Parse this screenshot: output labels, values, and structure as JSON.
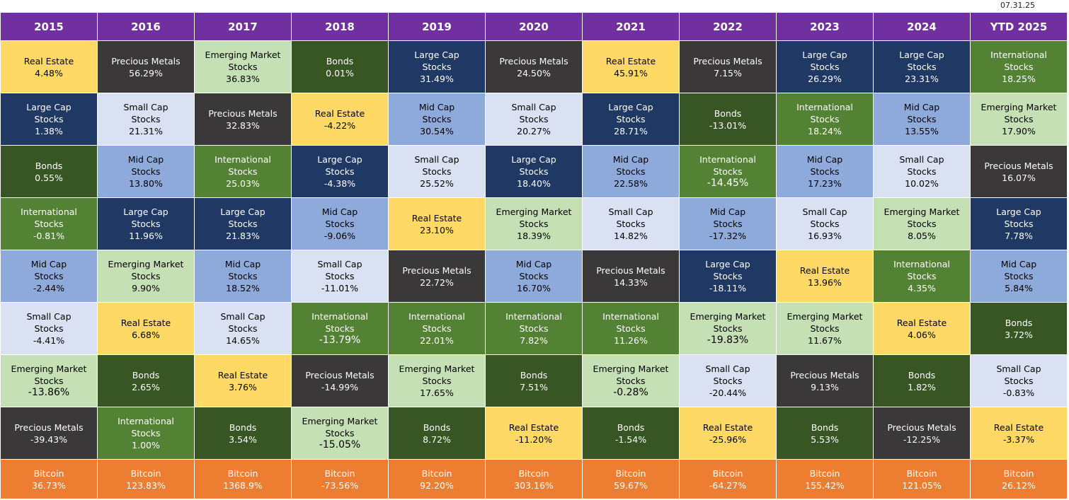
{
  "as_of": "07.31.25",
  "colors": {
    "header": "#7030a0",
    "Real Estate": "#ffd966",
    "Precious Metals": "#3a3838",
    "Emerging Market Stocks": "#c5e0b4",
    "Bonds": "#375623",
    "Large Cap Stocks": "#1f3864",
    "International Stocks": "#548235",
    "Small Cap Stocks": "#d9e1f2",
    "Mid Cap Stocks": "#8eaadb",
    "Bitcoin": "#ed7d31"
  },
  "text_colors": {
    "Real Estate": "#000000",
    "Precious Metals": "#ffffff",
    "Emerging Market Stocks": "#000000",
    "Bonds": "#ffffff",
    "Large Cap Stocks": "#ffffff",
    "International Stocks": "#ffffff",
    "Small Cap Stocks": "#000000",
    "Mid Cap Stocks": "#000000",
    "Bitcoin": "#ffffff"
  },
  "chart_data": {
    "type": "table",
    "columns": [
      {
        "year": "2015",
        "ranked": [
          [
            "Real Estate",
            "4.48%"
          ],
          [
            "Large Cap Stocks",
            "1.38%"
          ],
          [
            "Bonds",
            "0.55%"
          ],
          [
            "International Stocks",
            "-0.81%"
          ],
          [
            "Mid Cap Stocks",
            "-2.44%"
          ],
          [
            "Small Cap Stocks",
            "-4.41%"
          ],
          [
            "Emerging Market Stocks",
            "-13.86%"
          ],
          [
            "Precious Metals",
            "-39.43%"
          ]
        ],
        "bitcoin": "36.73%"
      },
      {
        "year": "2016",
        "ranked": [
          [
            "Precious Metals",
            "56.29%"
          ],
          [
            "Small Cap Stocks",
            "21.31%"
          ],
          [
            "Mid Cap Stocks",
            "13.80%"
          ],
          [
            "Large Cap Stocks",
            "11.96%"
          ],
          [
            "Emerging Market Stocks",
            "9.90%"
          ],
          [
            "Real Estate",
            "6.68%"
          ],
          [
            "Bonds",
            "2.65%"
          ],
          [
            "International Stocks",
            "1.00%"
          ]
        ],
        "bitcoin": "123.83%"
      },
      {
        "year": "2017",
        "ranked": [
          [
            "Emerging Market Stocks",
            "36.83%"
          ],
          [
            "Precious Metals",
            "32.83%"
          ],
          [
            "International Stocks",
            "25.03%"
          ],
          [
            "Large Cap Stocks",
            "21.83%"
          ],
          [
            "Mid Cap Stocks",
            "18.52%"
          ],
          [
            "Small Cap Stocks",
            "14.65%"
          ],
          [
            "Real Estate",
            "3.76%"
          ],
          [
            "Bonds",
            "3.54%"
          ]
        ],
        "bitcoin": "1368.9%"
      },
      {
        "year": "2018",
        "ranked": [
          [
            "Bonds",
            "0.01%"
          ],
          [
            "Real Estate",
            "-4.22%"
          ],
          [
            "Large Cap Stocks",
            "-4.38%"
          ],
          [
            "Mid Cap Stocks",
            "-9.06%"
          ],
          [
            "Small Cap Stocks",
            "-11.01%"
          ],
          [
            "International Stocks",
            "-13.79%"
          ],
          [
            "Precious Metals",
            "-14.99%"
          ],
          [
            "Emerging Market Stocks",
            "-15.05%"
          ]
        ],
        "bitcoin": "-73.56%"
      },
      {
        "year": "2019",
        "ranked": [
          [
            "Large Cap Stocks",
            "31.49%"
          ],
          [
            "Mid Cap Stocks",
            "30.54%"
          ],
          [
            "Small Cap Stocks",
            "25.52%"
          ],
          [
            "Real Estate",
            "23.10%"
          ],
          [
            "Precious Metals",
            "22.72%"
          ],
          [
            "International Stocks",
            "22.01%"
          ],
          [
            "Emerging Market Stocks",
            "17.65%"
          ],
          [
            "Bonds",
            "8.72%"
          ]
        ],
        "bitcoin": "92.20%"
      },
      {
        "year": "2020",
        "ranked": [
          [
            "Precious Metals",
            "24.50%"
          ],
          [
            "Small Cap Stocks",
            "20.27%"
          ],
          [
            "Large Cap Stocks",
            "18.40%"
          ],
          [
            "Emerging Market Stocks",
            "18.39%"
          ],
          [
            "Mid Cap Stocks",
            "16.70%"
          ],
          [
            "International Stocks",
            "7.82%"
          ],
          [
            "Bonds",
            "7.51%"
          ],
          [
            "Real Estate",
            "-11.20%"
          ]
        ],
        "bitcoin": "303.16%"
      },
      {
        "year": "2021",
        "ranked": [
          [
            "Real Estate",
            "45.91%"
          ],
          [
            "Large Cap Stocks",
            "28.71%"
          ],
          [
            "Mid Cap Stocks",
            "22.58%"
          ],
          [
            "Small Cap Stocks",
            "14.82%"
          ],
          [
            "Precious Metals",
            "14.33%"
          ],
          [
            "International Stocks",
            "11.26%"
          ],
          [
            "Emerging Market Stocks",
            "-0.28%"
          ],
          [
            "Bonds",
            "-1.54%"
          ]
        ],
        "bitcoin": "59.67%"
      },
      {
        "year": "2022",
        "ranked": [
          [
            "Precious Metals",
            "7.15%"
          ],
          [
            "Bonds",
            "-13.01%"
          ],
          [
            "International Stocks",
            "-14.45%"
          ],
          [
            "Mid Cap Stocks",
            "-17.32%"
          ],
          [
            "Large Cap Stocks",
            "-18.11%"
          ],
          [
            "Emerging Market Stocks",
            "-19.83%"
          ],
          [
            "Small Cap Stocks",
            "-20.44%"
          ],
          [
            "Real Estate",
            "-25.96%"
          ]
        ],
        "bitcoin": "-64.27%"
      },
      {
        "year": "2023",
        "ranked": [
          [
            "Large Cap Stocks",
            "26.29%"
          ],
          [
            "International Stocks",
            "18.24%"
          ],
          [
            "Mid Cap Stocks",
            "17.23%"
          ],
          [
            "Small Cap Stocks",
            "16.93%"
          ],
          [
            "Real Estate",
            "13.96%"
          ],
          [
            "Emerging Market Stocks",
            "11.67%"
          ],
          [
            "Precious Metals",
            "9.13%"
          ],
          [
            "Bonds",
            "5.53%"
          ]
        ],
        "bitcoin": "155.42%"
      },
      {
        "year": "2024",
        "ranked": [
          [
            "Large Cap Stocks",
            "23.31%"
          ],
          [
            "Mid Cap Stocks",
            "13.55%"
          ],
          [
            "Small Cap Stocks",
            "10.02%"
          ],
          [
            "Emerging Market Stocks",
            "8.05%"
          ],
          [
            "International Stocks",
            "4.35%"
          ],
          [
            "Real Estate",
            "4.06%"
          ],
          [
            "Bonds",
            "1.82%"
          ],
          [
            "Precious Metals",
            "-12.25%"
          ]
        ],
        "bitcoin": "121.05%"
      },
      {
        "year": "YTD 2025",
        "ranked": [
          [
            "International Stocks",
            "18.25%"
          ],
          [
            "Emerging Market Stocks",
            "17.90%"
          ],
          [
            "Precious Metals",
            "16.07%"
          ],
          [
            "Large Cap Stocks",
            "7.78%"
          ],
          [
            "Mid Cap Stocks",
            "5.84%"
          ],
          [
            "Bonds",
            "3.72%"
          ],
          [
            "Small Cap Stocks",
            "-0.83%"
          ],
          [
            "Real Estate",
            "-3.37%"
          ]
        ],
        "bitcoin": "26.12%"
      }
    ]
  }
}
